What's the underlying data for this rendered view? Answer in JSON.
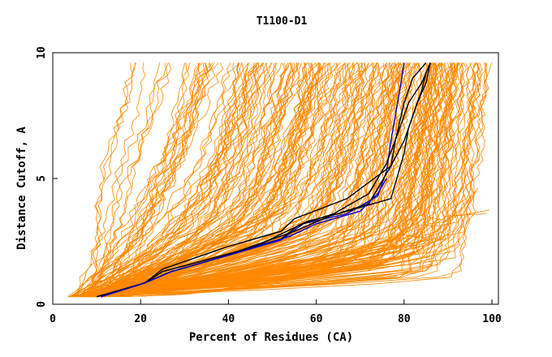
{
  "chart_data": {
    "type": "line",
    "title": "T1100-D1",
    "xlabel": "Percent of Residues (CA)",
    "ylabel": "Distance Cutoff, A",
    "xlim": [
      0,
      100
    ],
    "ylim": [
      0,
      10
    ],
    "x_ticks": [
      "0",
      "20",
      "40",
      "60",
      "80",
      "100"
    ],
    "y_ticks": [
      "0",
      "5",
      "10"
    ],
    "grid": false,
    "legend": "none",
    "colors": {
      "background_models": "#ff8800",
      "highlight_blue": "#0000cc",
      "highlight_black": "#000000",
      "axes": "#000000"
    },
    "series": [
      {
        "color": "#0000cc",
        "x": [
          11,
          21,
          27,
          40,
          52,
          57,
          67,
          74,
          76,
          77,
          78,
          79,
          80
        ],
        "y": [
          0.3,
          0.85,
          1.3,
          1.95,
          2.55,
          3.2,
          3.6,
          4.3,
          5.3,
          6.5,
          7.5,
          8.5,
          9.6
        ]
      },
      {
        "color": "#000000",
        "x": [
          11,
          21,
          25,
          40,
          52,
          55,
          67,
          77,
          80,
          82,
          84,
          85,
          86
        ],
        "y": [
          0.3,
          0.85,
          1.4,
          2.3,
          2.9,
          3.4,
          4.2,
          5.5,
          6.5,
          7.5,
          8.5,
          9.2,
          9.6
        ]
      },
      {
        "color": "#000000",
        "x": [
          11,
          21,
          25,
          40,
          52,
          56,
          64,
          72,
          76,
          79,
          81,
          84,
          86
        ],
        "y": [
          0.3,
          0.85,
          1.3,
          2.0,
          2.6,
          3.15,
          3.6,
          4.4,
          5.6,
          7.0,
          8.0,
          8.8,
          9.6
        ]
      },
      {
        "color": "#000000",
        "x": [
          10,
          21,
          27,
          45,
          58,
          65,
          77,
          80,
          81,
          83,
          85,
          86
        ],
        "y": [
          0.3,
          0.85,
          1.3,
          2.2,
          3.3,
          3.6,
          4.2,
          6.0,
          7.0,
          8.0,
          8.8,
          9.6
        ]
      },
      {
        "color": "#000000",
        "x": [
          11,
          21,
          25,
          42,
          55,
          63,
          72,
          77,
          78,
          80,
          82,
          85
        ],
        "y": [
          0.3,
          0.85,
          1.3,
          2.1,
          2.9,
          3.5,
          4.0,
          5.5,
          6.5,
          8.0,
          9.0,
          9.6
        ]
      },
      {
        "color": "#0000cc",
        "x": [
          11,
          21,
          27,
          42,
          54,
          60,
          70,
          74,
          76
        ],
        "y": [
          0.3,
          0.85,
          1.3,
          2.05,
          2.7,
          3.2,
          3.7,
          4.4,
          5.0
        ]
      }
    ]
  }
}
